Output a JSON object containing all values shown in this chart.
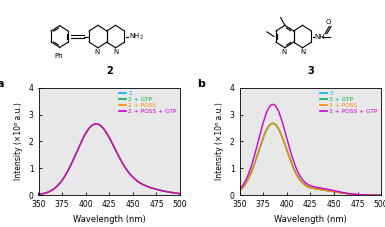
{
  "panel_a": {
    "label": "a",
    "compound": "2",
    "legend": [
      "2",
      "2 + GTP",
      "2 + POSS",
      "2 + POSS + GTP"
    ],
    "colors": [
      "#00b0f0",
      "#00b050",
      "#ff8c00",
      "#cc00cc"
    ],
    "peak_wl": 410,
    "sigma": 20,
    "peaks": [
      2.52,
      2.52,
      2.52,
      2.52
    ],
    "xlim": [
      350,
      500
    ],
    "ylim": [
      0,
      4
    ],
    "yticks": [
      0,
      1,
      2,
      3,
      4
    ]
  },
  "panel_b": {
    "label": "b",
    "compound": "3",
    "legend": [
      "3",
      "3 + GTP",
      "3 + POSS",
      "3 + POSS + GTP"
    ],
    "colors": [
      "#00b0f0",
      "#00b050",
      "#ff8c00",
      "#cc00cc"
    ],
    "peak_wl": 385,
    "sigma": 15,
    "peaks": [
      2.65,
      2.65,
      2.65,
      3.35
    ],
    "xlim": [
      350,
      500
    ],
    "ylim": [
      0,
      4
    ],
    "yticks": [
      0,
      1,
      2,
      3,
      4
    ]
  },
  "xlabel": "Wavelength (nm)",
  "ylabel": "Intensity (×10⁶ a.u.)",
  "plot_bg": "#e8e8e8",
  "fig_bg": "white"
}
